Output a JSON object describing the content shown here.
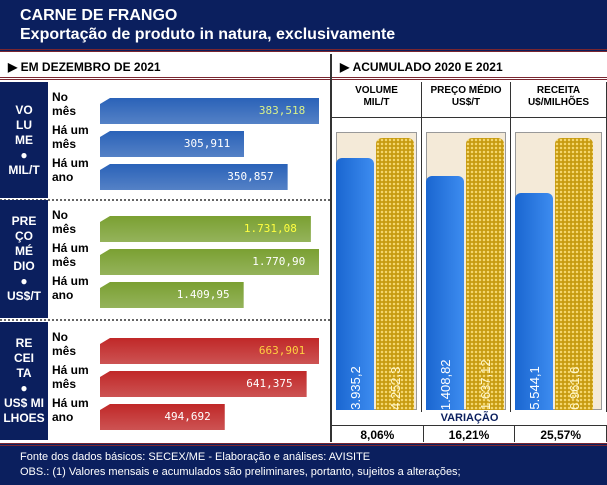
{
  "title": "CARNE DE FRANGO",
  "subtitle": "Exportação de produto in natura, exclusivamente",
  "left_header": "EM DEZEMBRO DE 2021",
  "right_header": "ACUMULADO 2020  E 2021",
  "row_labels": [
    [
      "No",
      "mês"
    ],
    [
      "Há um",
      "mês"
    ],
    [
      "Há um",
      "ano"
    ]
  ],
  "chart_data": [
    {
      "type": "bar",
      "orientation": "horizontal",
      "title": "EM DEZEMBRO DE 2021",
      "groups": [
        {
          "label_lines": [
            "VO",
            "LU",
            "ME",
            "●",
            "MIL/T"
          ],
          "color": "#2a62b8",
          "categories": [
            "No mês",
            "Há um mês",
            "Há um ano"
          ],
          "values": [
            383.518,
            305.911,
            350.857
          ],
          "labels": [
            "383,518",
            "305,911",
            "350,857"
          ],
          "label_colors": [
            "#d8f08a",
            "#fff",
            "#fff"
          ]
        },
        {
          "label_lines": [
            "PRE",
            "ÇO",
            "MÉ",
            "DIO",
            "●",
            "US$/T"
          ],
          "color": "#7aa032",
          "categories": [
            "No mês",
            "Há um mês",
            "Há um ano"
          ],
          "values": [
            1731.08,
            1770.9,
            1409.95
          ],
          "labels": [
            "1.731,08",
            "1.770,90",
            "1.409,95"
          ],
          "label_colors": [
            "#ffff40",
            "#fff",
            "#fff"
          ]
        },
        {
          "label_lines": [
            "RE",
            "CEI",
            "TA",
            "●",
            "US$ MI",
            "LHOES"
          ],
          "color": "#c02828",
          "categories": [
            "No mês",
            "Há um mês",
            "Há um ano"
          ],
          "values": [
            663.901,
            641.375,
            494.692
          ],
          "labels": [
            "663,901",
            "641,375",
            "494,692"
          ],
          "label_colors": [
            "#ffd040",
            "#fff",
            "#fff"
          ]
        }
      ]
    },
    {
      "type": "bar",
      "title": "ACUMULADO 2020  E 2021",
      "series": [
        "2020",
        "2021"
      ],
      "panels": [
        {
          "header": [
            "VOLUME",
            "MIL/T"
          ],
          "values": [
            3935.2,
            4252.3
          ],
          "labels": [
            "3.935,2",
            "4.252,3"
          ],
          "variation": "8,06%"
        },
        {
          "header": [
            "PREÇO MÉDIO",
            "US$/T"
          ],
          "values": [
            1408.82,
            1637.12
          ],
          "labels": [
            "1.408,82",
            "1.637,12"
          ],
          "variation": "16,21%"
        },
        {
          "header": [
            "RECEITA",
            "U$/MILHÕES"
          ],
          "values": [
            5544.1,
            6961.6
          ],
          "labels": [
            "5.544,1",
            "6.961,6"
          ],
          "variation": "25,57%"
        }
      ],
      "variation_label": "VARIAÇÃO"
    }
  ],
  "footer": [
    "Fonte dos dados básicos: SECEX/ME - Elaboração e análises: AVISITE",
    "OBS.: (1) Valores mensais e acumulados são preliminares, portanto, sujeitos a alterações;"
  ]
}
